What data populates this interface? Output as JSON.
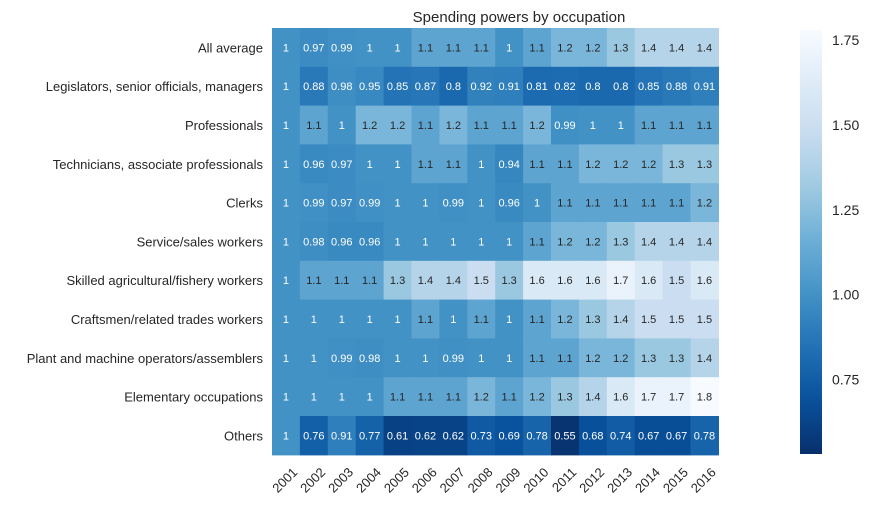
{
  "chart_data": {
    "type": "heatmap",
    "title": "Spending powers by occupation",
    "colormap": "Blues_r",
    "vmin": 0.53,
    "vmax": 1.78,
    "x": [
      "2001",
      "2002",
      "2003",
      "2004",
      "2005",
      "2006",
      "2007",
      "2008",
      "2009",
      "2010",
      "2011",
      "2012",
      "2013",
      "2014",
      "2015",
      "2016"
    ],
    "y": [
      "All average",
      "Legislators, senior officials, managers",
      "Professionals",
      "Technicians, associate professionals",
      "Clerks",
      "Service/sales workers",
      "Skilled agricultural/fishery workers",
      "Craftsmen/related trades workers",
      "Plant and machine operators/assemblers",
      "Elementary occupations",
      "Others"
    ],
    "values": [
      [
        1,
        0.97,
        0.99,
        1,
        1,
        1.1,
        1.1,
        1.1,
        1,
        1.1,
        1.2,
        1.2,
        1.3,
        1.4,
        1.4,
        1.4
      ],
      [
        1,
        0.88,
        0.98,
        0.95,
        0.85,
        0.87,
        0.8,
        0.92,
        0.91,
        0.81,
        0.82,
        0.8,
        0.8,
        0.85,
        0.88,
        0.91
      ],
      [
        1,
        1.1,
        1,
        1.2,
        1.2,
        1.1,
        1.2,
        1.1,
        1.1,
        1.2,
        0.99,
        1,
        1,
        1.1,
        1.1,
        1.1
      ],
      [
        1,
        0.96,
        0.97,
        1,
        1,
        1.1,
        1.1,
        1,
        0.94,
        1.1,
        1.1,
        1.2,
        1.2,
        1.2,
        1.3,
        1.3
      ],
      [
        1,
        0.99,
        0.97,
        0.99,
        1,
        1,
        0.99,
        1,
        0.96,
        1,
        1.1,
        1.1,
        1.1,
        1.1,
        1.1,
        1.2
      ],
      [
        1,
        0.98,
        0.96,
        0.96,
        1,
        1,
        1,
        1,
        1,
        1.1,
        1.2,
        1.2,
        1.3,
        1.4,
        1.4,
        1.4
      ],
      [
        1,
        1.1,
        1.1,
        1.1,
        1.3,
        1.4,
        1.4,
        1.5,
        1.3,
        1.6,
        1.6,
        1.6,
        1.7,
        1.6,
        1.5,
        1.6
      ],
      [
        1,
        1,
        1,
        1,
        1,
        1.1,
        1,
        1.1,
        1,
        1.1,
        1.2,
        1.3,
        1.4,
        1.5,
        1.5,
        1.5
      ],
      [
        1,
        1,
        0.99,
        0.98,
        1,
        1,
        0.99,
        1,
        1,
        1.1,
        1.1,
        1.2,
        1.2,
        1.3,
        1.3,
        1.4
      ],
      [
        1,
        1,
        1,
        1,
        1.1,
        1.1,
        1.1,
        1.2,
        1.1,
        1.2,
        1.3,
        1.4,
        1.6,
        1.7,
        1.7,
        1.8
      ],
      [
        1,
        0.76,
        0.91,
        0.77,
        0.61,
        0.62,
        0.62,
        0.73,
        0.69,
        0.78,
        0.55,
        0.68,
        0.74,
        0.67,
        0.67,
        0.78
      ]
    ],
    "colorbar_ticks": [
      "0.75",
      "1.00",
      "1.25",
      "1.50",
      "1.75"
    ]
  }
}
